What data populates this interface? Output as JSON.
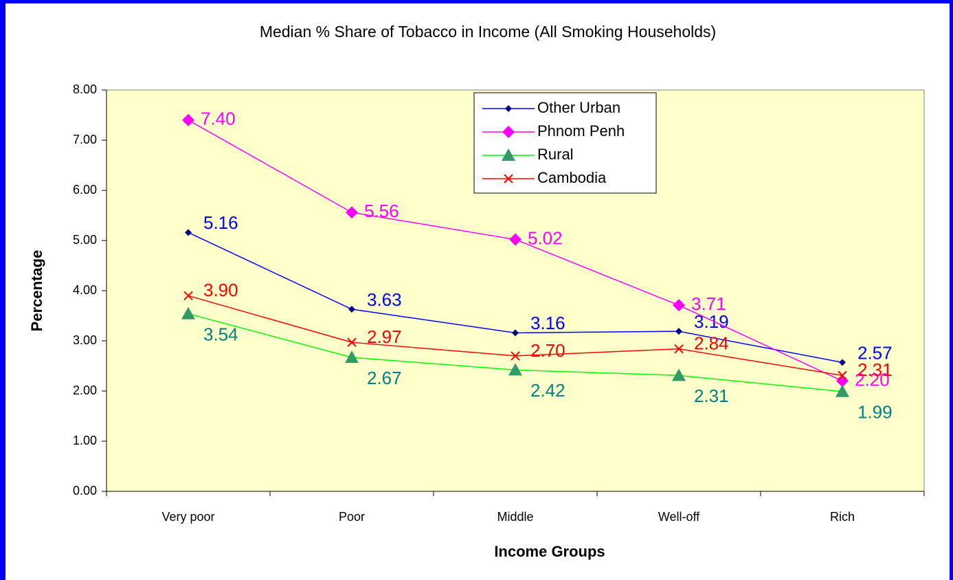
{
  "chart_data": {
    "type": "line",
    "title": "Median % Share of Tobacco in Income (All Smoking Households)",
    "x_label": "Income Groups",
    "y_label": "Percentage",
    "categories": [
      "Very poor",
      "Poor",
      "Middle",
      "Well-off",
      "Rich"
    ],
    "series": [
      {
        "name": "Other Urban",
        "color": "#0000ff",
        "marker": "diamond",
        "marker_color": "#000080",
        "label_color": "#0000ff",
        "values": [
          5.16,
          3.63,
          3.16,
          3.19,
          2.57
        ],
        "value_labels": [
          "5.16",
          "3.63",
          "3.16",
          "3.19",
          "2.57"
        ]
      },
      {
        "name": "Phnom Penh",
        "color": "#ff00ff",
        "marker": "diamond-large",
        "marker_color": "#ff00ff",
        "label_color": "#ff00ff",
        "values": [
          7.4,
          5.56,
          5.02,
          3.71,
          2.2
        ],
        "value_labels": [
          "7.40",
          "5.56",
          "5.02",
          "3.71",
          "2.20"
        ]
      },
      {
        "name": "Rural",
        "color": "#00ff00",
        "marker": "triangle",
        "marker_color": "#339966",
        "label_color": "#008080",
        "values": [
          3.54,
          2.67,
          2.42,
          2.31,
          1.99
        ],
        "value_labels": [
          "3.54",
          "2.67",
          "2.42",
          "2.31",
          "1.99"
        ]
      },
      {
        "name": "Cambodia",
        "color": "#ff0000",
        "marker": "x",
        "marker_color": "#ff0000",
        "label_color": "#ff0000",
        "values": [
          3.9,
          2.97,
          2.7,
          2.84,
          2.31
        ],
        "value_labels": [
          "3.90",
          "2.97",
          "2.70",
          "2.84",
          "2.31"
        ]
      }
    ],
    "ylim": [
      0,
      8
    ],
    "yticks": [
      {
        "value": 0,
        "label": "0.00"
      },
      {
        "value": 1,
        "label": "1.00"
      },
      {
        "value": 2,
        "label": "2.00"
      },
      {
        "value": 3,
        "label": "3.00"
      },
      {
        "value": 4,
        "label": "4.00"
      },
      {
        "value": 5,
        "label": "5.00"
      },
      {
        "value": 6,
        "label": "6.00"
      },
      {
        "value": 7,
        "label": "7.00"
      },
      {
        "value": 8,
        "label": "8.00"
      }
    ],
    "plot_background": "#ffffcc",
    "grid": false,
    "legend_position": "top"
  }
}
